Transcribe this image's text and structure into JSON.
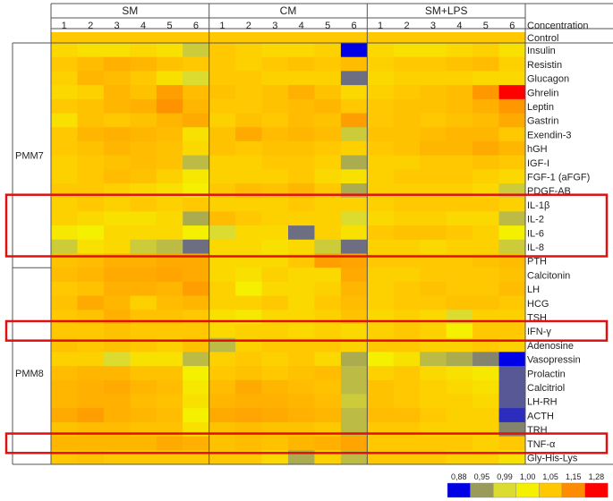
{
  "chart_data": {
    "type": "heatmap",
    "title": "",
    "groups": [
      "SM",
      "CM",
      "SM+LPS"
    ],
    "columns_per_group": [
      "1",
      "2",
      "3",
      "4",
      "5",
      "6"
    ],
    "header_label": "Concentration",
    "control_label": "Control",
    "control_value": 1.05,
    "row_groups": [
      {
        "name": "PMM7",
        "start": 0,
        "end": 15
      },
      {
        "name": "PMM8",
        "start": 16,
        "end": 30
      }
    ],
    "rows": [
      "Insulin",
      "Resistin",
      "Glucagon",
      "Ghrelin",
      "Leptin",
      "Gastrin",
      "Exendin-3",
      "hGH",
      "IGF-I",
      "FGF-1 (aFGF)",
      "PDGF-AB",
      "IL-1β",
      "IL-2",
      "IL-6",
      "IL-8",
      "PTH",
      "Calcitonin",
      "LH",
      "HCG",
      "TSH",
      "IFN-γ",
      "Adenosine",
      "Vasopressin",
      "Prolactin",
      "Calcitriol",
      "LH-RH",
      "ACTH",
      "TRH",
      "TNF-α",
      "Gly-His-Lys"
    ],
    "values": [
      [
        1.03,
        1.02,
        1.02,
        1.03,
        1.02,
        0.98,
        1.05,
        1.04,
        1.03,
        1.03,
        1.04,
        0.88,
        1.03,
        1.02,
        1.02,
        1.03,
        1.04,
        1.02
      ],
      [
        1.05,
        1.07,
        1.09,
        1.08,
        1.06,
        1.05,
        1.05,
        1.04,
        1.05,
        1.06,
        1.05,
        1.07,
        1.04,
        1.05,
        1.05,
        1.06,
        1.07,
        1.04
      ],
      [
        1.04,
        1.08,
        1.07,
        1.05,
        1.02,
        0.99,
        1.05,
        1.05,
        1.04,
        1.04,
        1.04,
        0.93,
        1.03,
        1.04,
        1.04,
        1.04,
        1.03,
        1.03
      ],
      [
        1.03,
        1.04,
        1.08,
        1.06,
        1.12,
        1.07,
        1.06,
        1.05,
        1.06,
        1.09,
        1.06,
        1.03,
        1.04,
        1.05,
        1.06,
        1.07,
        1.13,
        1.28
      ],
      [
        1.05,
        1.06,
        1.08,
        1.09,
        1.14,
        1.08,
        1.05,
        1.05,
        1.06,
        1.07,
        1.08,
        1.05,
        1.05,
        1.06,
        1.06,
        1.07,
        1.09,
        1.13
      ],
      [
        1.02,
        1.06,
        1.05,
        1.06,
        1.08,
        1.1,
        1.04,
        1.06,
        1.05,
        1.07,
        1.06,
        1.12,
        1.05,
        1.06,
        1.05,
        1.06,
        1.07,
        1.1
      ],
      [
        1.05,
        1.08,
        1.09,
        1.08,
        1.07,
        1.02,
        1.06,
        1.1,
        1.07,
        1.08,
        1.07,
        0.98,
        1.06,
        1.06,
        1.07,
        1.08,
        1.08,
        1.05
      ],
      [
        1.05,
        1.06,
        1.08,
        1.07,
        1.06,
        1.03,
        1.06,
        1.05,
        1.06,
        1.06,
        1.05,
        1.04,
        1.05,
        1.06,
        1.08,
        1.08,
        1.1,
        1.08
      ],
      [
        1.04,
        1.05,
        1.06,
        1.07,
        1.06,
        0.97,
        1.04,
        1.04,
        1.05,
        1.05,
        1.04,
        0.96,
        1.04,
        1.04,
        1.05,
        1.05,
        1.06,
        1.05
      ],
      [
        1.04,
        1.05,
        1.07,
        1.06,
        1.04,
        1.01,
        1.04,
        1.04,
        1.04,
        1.05,
        1.03,
        1.02,
        1.04,
        1.05,
        1.05,
        1.05,
        1.04,
        1.03
      ],
      [
        1.05,
        1.05,
        1.04,
        1.03,
        1.02,
        1.0,
        1.05,
        1.07,
        1.06,
        1.08,
        1.05,
        0.96,
        1.04,
        1.04,
        1.04,
        1.04,
        1.03,
        0.98
      ],
      [
        1.04,
        1.05,
        1.04,
        1.05,
        1.04,
        1.05,
        1.04,
        1.04,
        1.04,
        1.05,
        1.04,
        1.04,
        1.04,
        1.05,
        1.05,
        1.05,
        1.05,
        1.04
      ],
      [
        1.04,
        1.03,
        1.02,
        1.02,
        1.03,
        0.96,
        1.07,
        1.05,
        1.04,
        1.04,
        1.04,
        0.99,
        1.03,
        1.04,
        1.04,
        1.03,
        1.03,
        0.97
      ],
      [
        1.01,
        1.0,
        1.03,
        1.03,
        1.03,
        1.0,
        0.99,
        1.03,
        1.03,
        0.93,
        1.04,
        1.02,
        1.05,
        1.06,
        1.06,
        1.05,
        1.04,
        1.0
      ],
      [
        0.98,
        1.02,
        1.03,
        0.98,
        0.97,
        0.93,
        1.03,
        1.03,
        1.02,
        1.03,
        0.98,
        0.93,
        1.04,
        1.04,
        1.03,
        1.04,
        1.04,
        0.98
      ],
      [
        1.06,
        1.07,
        1.09,
        1.09,
        1.1,
        1.1,
        1.03,
        1.03,
        1.03,
        1.05,
        1.12,
        1.11,
        1.05,
        1.05,
        1.05,
        1.05,
        1.06,
        1.07
      ],
      [
        1.07,
        1.08,
        1.1,
        1.1,
        1.11,
        1.1,
        1.03,
        1.02,
        1.04,
        1.03,
        1.03,
        1.1,
        1.04,
        1.04,
        1.05,
        1.05,
        1.05,
        1.06
      ],
      [
        1.05,
        1.06,
        1.09,
        1.09,
        1.08,
        1.12,
        1.04,
        1.0,
        1.03,
        1.03,
        1.04,
        1.08,
        1.04,
        1.05,
        1.06,
        1.05,
        1.05,
        1.07
      ],
      [
        1.06,
        1.1,
        1.08,
        1.04,
        1.07,
        1.08,
        1.04,
        1.04,
        1.05,
        1.03,
        1.05,
        1.07,
        1.04,
        1.05,
        1.05,
        1.06,
        1.06,
        1.05
      ],
      [
        1.05,
        1.06,
        1.09,
        1.06,
        1.06,
        1.05,
        1.02,
        1.01,
        1.03,
        1.03,
        1.04,
        1.06,
        1.03,
        1.04,
        1.03,
        0.99,
        1.04,
        1.04
      ],
      [
        1.05,
        1.05,
        1.06,
        1.05,
        1.05,
        1.05,
        1.03,
        1.04,
        1.04,
        1.03,
        1.04,
        1.03,
        1.04,
        1.05,
        1.04,
        1.0,
        1.05,
        1.05
      ],
      [
        1.06,
        1.05,
        1.06,
        1.05,
        1.04,
        1.06,
        0.97,
        1.04,
        1.05,
        1.05,
        1.05,
        1.04,
        1.05,
        1.05,
        1.04,
        1.04,
        1.05,
        1.04
      ],
      [
        1.04,
        1.04,
        0.99,
        1.02,
        1.02,
        0.97,
        1.04,
        1.05,
        1.04,
        1.05,
        1.03,
        0.96,
        1.0,
        1.02,
        0.97,
        0.96,
        0.94,
        0.88
      ],
      [
        1.07,
        1.08,
        1.08,
        1.06,
        1.06,
        1.0,
        1.05,
        1.06,
        1.05,
        1.06,
        1.07,
        0.97,
        1.04,
        1.05,
        1.03,
        1.02,
        1.01,
        0.92
      ],
      [
        1.08,
        1.09,
        1.1,
        1.08,
        1.07,
        1.01,
        1.07,
        1.1,
        1.08,
        1.07,
        1.06,
        0.97,
        1.06,
        1.05,
        1.04,
        1.03,
        1.02,
        0.92
      ],
      [
        1.08,
        1.09,
        1.09,
        1.07,
        1.06,
        1.02,
        1.08,
        1.09,
        1.09,
        1.08,
        1.07,
        0.98,
        1.06,
        1.05,
        1.04,
        1.04,
        1.03,
        0.92
      ],
      [
        1.1,
        1.12,
        1.09,
        1.08,
        1.07,
        1.0,
        1.1,
        1.11,
        1.1,
        1.09,
        1.08,
        0.97,
        1.07,
        1.07,
        1.05,
        1.04,
        1.04,
        0.9
      ],
      [
        1.06,
        1.07,
        1.07,
        1.06,
        1.06,
        1.02,
        1.06,
        1.07,
        1.06,
        1.06,
        1.05,
        0.97,
        1.05,
        1.05,
        1.04,
        1.04,
        1.04,
        0.94
      ],
      [
        1.08,
        1.08,
        1.08,
        1.08,
        1.1,
        1.09,
        1.06,
        1.07,
        1.06,
        1.08,
        1.09,
        1.11,
        1.05,
        1.05,
        1.05,
        1.05,
        1.04,
        1.05
      ],
      [
        1.05,
        1.06,
        1.05,
        1.05,
        1.05,
        1.05,
        1.05,
        1.05,
        1.03,
        0.96,
        1.04,
        0.97,
        1.05,
        1.05,
        1.05,
        1.04,
        1.04,
        1.02
      ]
    ],
    "highlighted_rows": [
      "IL-1β",
      "IL-2",
      "IL-6",
      "IL-8",
      "IFN-γ",
      "TNF-α"
    ],
    "legend": {
      "labels": [
        "0,88",
        "0,95",
        "0,99",
        "1,00",
        "1,05",
        "1,15",
        "1,28"
      ],
      "thresholds": [
        0.88,
        0.95,
        0.99,
        1.0,
        1.05,
        1.15,
        1.28
      ],
      "colors": [
        "#0000e6",
        "#9a9a5a",
        "#dcdc30",
        "#f4f000",
        "#ffc800",
        "#ff8c00",
        "#ff0000"
      ],
      "placement": "bottom-right"
    },
    "highlight_color": "#e01010",
    "grid": true
  }
}
